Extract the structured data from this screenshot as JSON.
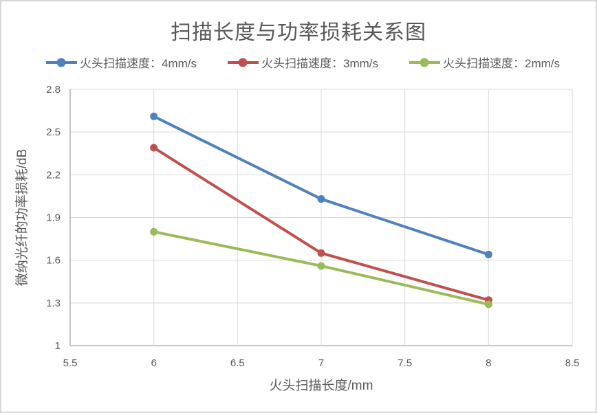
{
  "chart_data": {
    "type": "line",
    "title": "扫描长度与功率损耗关系图",
    "xlabel": "火头扫描长度/mm",
    "ylabel": "微纳光纤的功率损耗/dB",
    "x": [
      6,
      7,
      8
    ],
    "series": [
      {
        "name": "火头扫描速度：4mm/s",
        "color": "#4F81BD",
        "values": [
          2.61,
          2.03,
          1.64
        ]
      },
      {
        "name": "火头扫描速度：3mm/s",
        "color": "#C0504D",
        "values": [
          2.39,
          1.65,
          1.32
        ]
      },
      {
        "name": "火头扫描速度：2mm/s",
        "color": "#9BBB59",
        "values": [
          1.8,
          1.56,
          1.29
        ]
      }
    ],
    "xlim": [
      5.5,
      8.5
    ],
    "ylim": [
      1,
      2.8
    ],
    "x_ticks": [
      5.5,
      6,
      6.5,
      7,
      7.5,
      8,
      8.5
    ],
    "y_ticks": [
      1,
      1.3,
      1.6,
      1.9,
      2.2,
      2.5,
      2.8
    ],
    "x_tick_labels": [
      "5.5",
      "6",
      "6.5",
      "7",
      "7.5",
      "8",
      "8.5"
    ],
    "y_tick_labels": [
      "1",
      "1.3",
      "1.6",
      "1.9",
      "2.2",
      "2.5",
      "2.8"
    ],
    "grid": true,
    "legend_position": "top",
    "marker": "circle",
    "grid_color": "#D9D9D9",
    "axis_color": "#C6C6C6",
    "label_color": "#595959",
    "background": "#FFFFFF",
    "frame_border_color": "#D7D7D7"
  }
}
